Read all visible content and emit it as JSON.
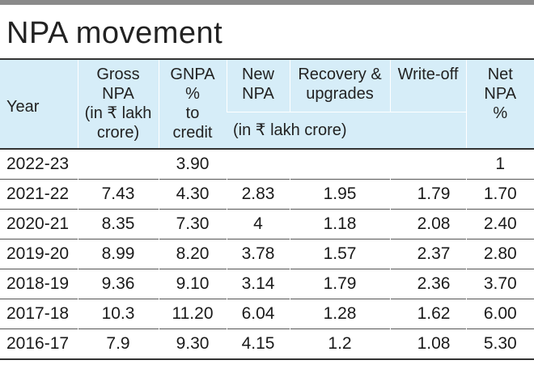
{
  "title": "NPA movement",
  "headers": {
    "year": "Year",
    "gross_npa": [
      "Gross",
      "NPA",
      "(in ₹ lakh",
      "crore)"
    ],
    "gnpa_pct": [
      "GNPA",
      "%",
      "to",
      "credit"
    ],
    "new_npa": [
      "New",
      "NPA"
    ],
    "recovery": [
      "Recovery &",
      "upgrades"
    ],
    "writeoff": [
      "Write-off"
    ],
    "net_npa": [
      "Net",
      "NPA",
      "%"
    ],
    "unit_note": "(in ₹ lakh crore)"
  },
  "rows": [
    {
      "year": "2022-23",
      "gross": "",
      "gnpa": "3.90",
      "new": "",
      "recovery": "",
      "writeoff": "",
      "net": "1"
    },
    {
      "year": "2021-22",
      "gross": "7.43",
      "gnpa": "4.30",
      "new": "2.83",
      "recovery": "1.95",
      "writeoff": "1.79",
      "net": "1.70"
    },
    {
      "year": "2020-21",
      "gross": "8.35",
      "gnpa": "7.30",
      "new": "4",
      "recovery": "1.18",
      "writeoff": "2.08",
      "net": "2.40"
    },
    {
      "year": "2019-20",
      "gross": "8.99",
      "gnpa": "8.20",
      "new": "3.78",
      "recovery": "1.57",
      "writeoff": "2.37",
      "net": "2.80"
    },
    {
      "year": "2018-19",
      "gross": "9.36",
      "gnpa": "9.10",
      "new": "3.14",
      "recovery": "1.79",
      "writeoff": "2.36",
      "net": "3.70"
    },
    {
      "year": "2017-18",
      "gross": "10.3",
      "gnpa": "11.20",
      "new": "6.04",
      "recovery": "1.28",
      "writeoff": "1.62",
      "net": "6.00"
    },
    {
      "year": "2016-17",
      "gross": "7.9",
      "gnpa": "9.30",
      "new": "4.15",
      "recovery": "1.2",
      "writeoff": "1.08",
      "net": "5.30"
    }
  ],
  "colors": {
    "header_bg": "#d6edf8",
    "rule": "#333333",
    "top_bar": "#8a8a8a"
  }
}
